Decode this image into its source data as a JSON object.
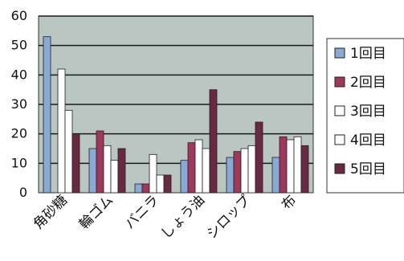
{
  "chart_data": {
    "type": "bar",
    "categories": [
      "角砂糖",
      "輪ゴム",
      "バニラ",
      "しょう油",
      "シロップ",
      "布"
    ],
    "series": [
      {
        "name": "1回目",
        "values": [
          53,
          15,
          3,
          11,
          12,
          12
        ]
      },
      {
        "name": "2回目",
        "values": [
          0,
          21,
          3,
          17,
          14,
          19
        ]
      },
      {
        "name": "3回目",
        "values": [
          42,
          16,
          13,
          18,
          15,
          18
        ]
      },
      {
        "name": "4回目",
        "values": [
          28,
          11,
          6,
          15,
          16,
          19
        ]
      },
      {
        "name": "5回目",
        "values": [
          20,
          15,
          6,
          35,
          24,
          16
        ]
      }
    ],
    "ylim": [
      0,
      60
    ],
    "yticks": [
      0,
      10,
      20,
      30,
      40,
      50,
      60
    ],
    "grid": true,
    "legend_position": "right",
    "colors": {
      "plot_background": "#b9c6c2",
      "series": [
        "#8aa9d4",
        "#a0385a",
        "#ffffff",
        "#ffffff",
        "#6a2843"
      ],
      "grid": "#1a1a1a"
    }
  }
}
